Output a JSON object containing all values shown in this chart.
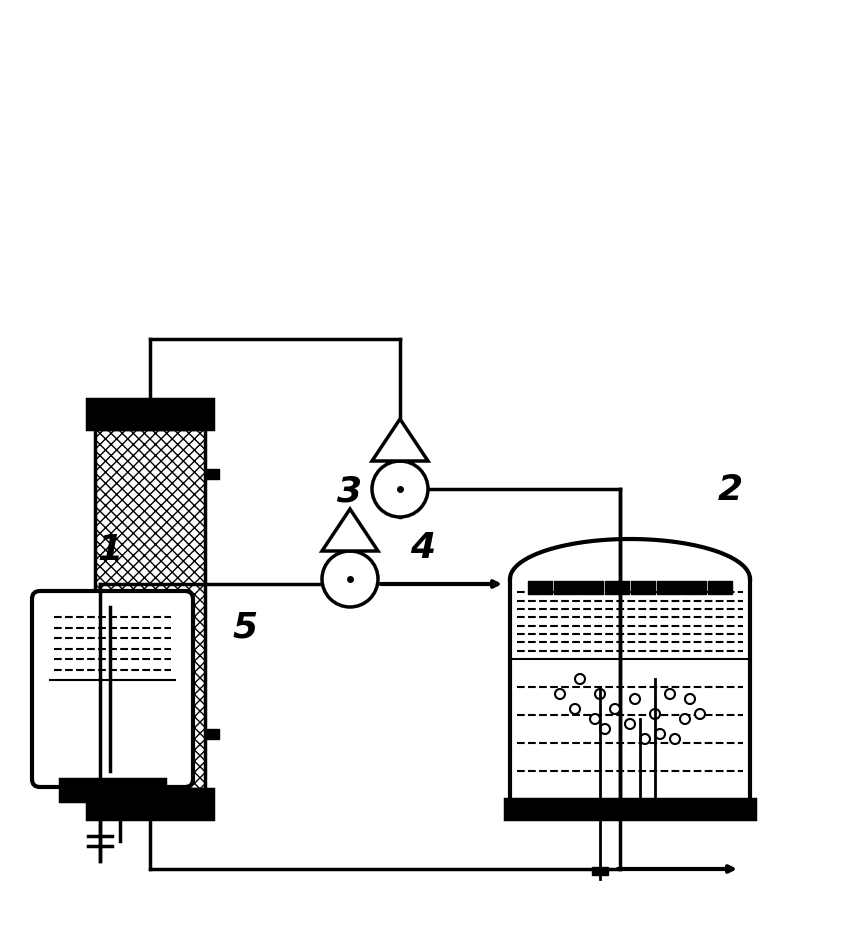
{
  "bg_color": "#ffffff",
  "line_color": "#000000",
  "label_1": "1",
  "label_2": "2",
  "label_3": "3",
  "label_4": "4",
  "label_5": "5"
}
